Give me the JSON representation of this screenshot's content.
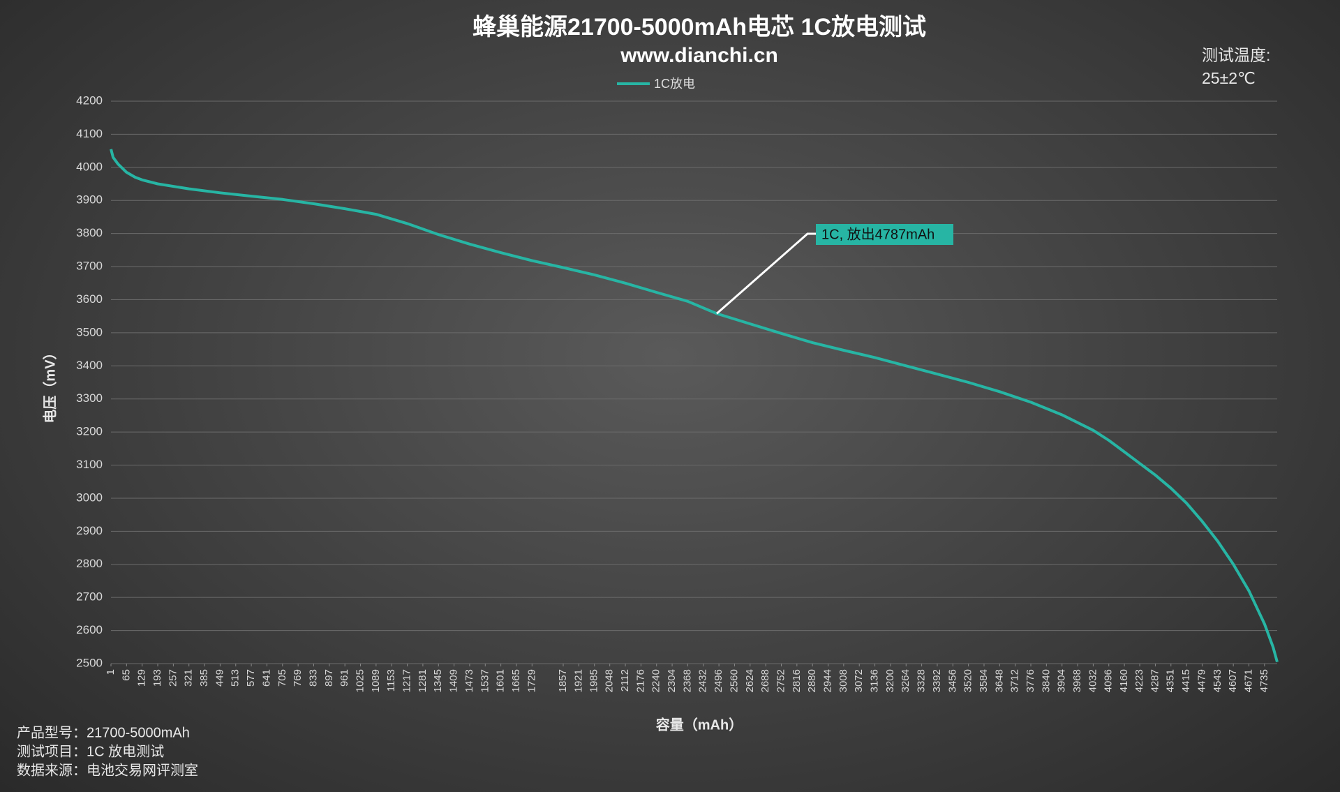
{
  "chart_data": {
    "type": "line",
    "title": "蜂巢能源21700-5000mAh电芯 1C放电测试",
    "subtitle": "www.dianchi.cn",
    "ylabel": "电压（mV）",
    "xlabel": "容量（mAh）",
    "notes": {
      "temperature_label": "测试温度:",
      "temperature": "25±2℃",
      "lines": [
        "产品型号：21700-5000mAh",
        "测试项目：1C 放电测试",
        "数据来源：电池交易网评测室"
      ]
    },
    "annotation": "1C, 放出4787mAh",
    "grid": true,
    "legend": "top",
    "xlim": [
      1,
      4787
    ],
    "ylim": [
      2500,
      4200
    ],
    "yticks": [
      2500,
      2600,
      2700,
      2800,
      2900,
      3000,
      3100,
      3200,
      3300,
      3400,
      3500,
      3600,
      3700,
      3800,
      3900,
      4000,
      4100,
      4200
    ],
    "xticks": [
      1,
      65,
      129,
      193,
      257,
      321,
      385,
      449,
      513,
      577,
      641,
      705,
      769,
      833,
      897,
      961,
      1025,
      1089,
      1153,
      1217,
      1281,
      1345,
      1409,
      1473,
      1537,
      1601,
      1665,
      1729,
      1857,
      1921,
      1985,
      2048,
      2112,
      2176,
      2240,
      2304,
      2368,
      2432,
      2496,
      2560,
      2624,
      2688,
      2752,
      2816,
      2880,
      2944,
      3008,
      3072,
      3136,
      3200,
      3264,
      3328,
      3392,
      3456,
      3520,
      3584,
      3648,
      3712,
      3776,
      3840,
      3904,
      3968,
      4032,
      4096,
      4160,
      4223,
      4287,
      4351,
      4415,
      4479,
      4543,
      4607,
      4671,
      4735
    ],
    "x": [
      1,
      10,
      30,
      65,
      100,
      129,
      193,
      321,
      449,
      577,
      705,
      833,
      961,
      1089,
      1217,
      1345,
      1473,
      1601,
      1729,
      1857,
      1985,
      2112,
      2240,
      2368,
      2487,
      2624,
      2752,
      2880,
      3008,
      3136,
      3264,
      3392,
      3520,
      3648,
      3776,
      3904,
      4032,
      4096,
      4160,
      4223,
      4287,
      4351,
      4415,
      4479,
      4543,
      4607,
      4671,
      4735,
      4770,
      4787
    ],
    "series": [
      {
        "name": "1C放电",
        "color": "#27b5a4",
        "values": [
          4055,
          4030,
          4010,
          3985,
          3970,
          3962,
          3950,
          3935,
          3923,
          3913,
          3903,
          3890,
          3875,
          3858,
          3830,
          3797,
          3768,
          3742,
          3718,
          3697,
          3675,
          3650,
          3622,
          3595,
          3558,
          3527,
          3498,
          3470,
          3447,
          3425,
          3400,
          3375,
          3350,
          3322,
          3290,
          3252,
          3205,
          3175,
          3140,
          3105,
          3070,
          3030,
          2985,
          2930,
          2870,
          2800,
          2720,
          2620,
          2550,
          2505
        ]
      }
    ]
  }
}
